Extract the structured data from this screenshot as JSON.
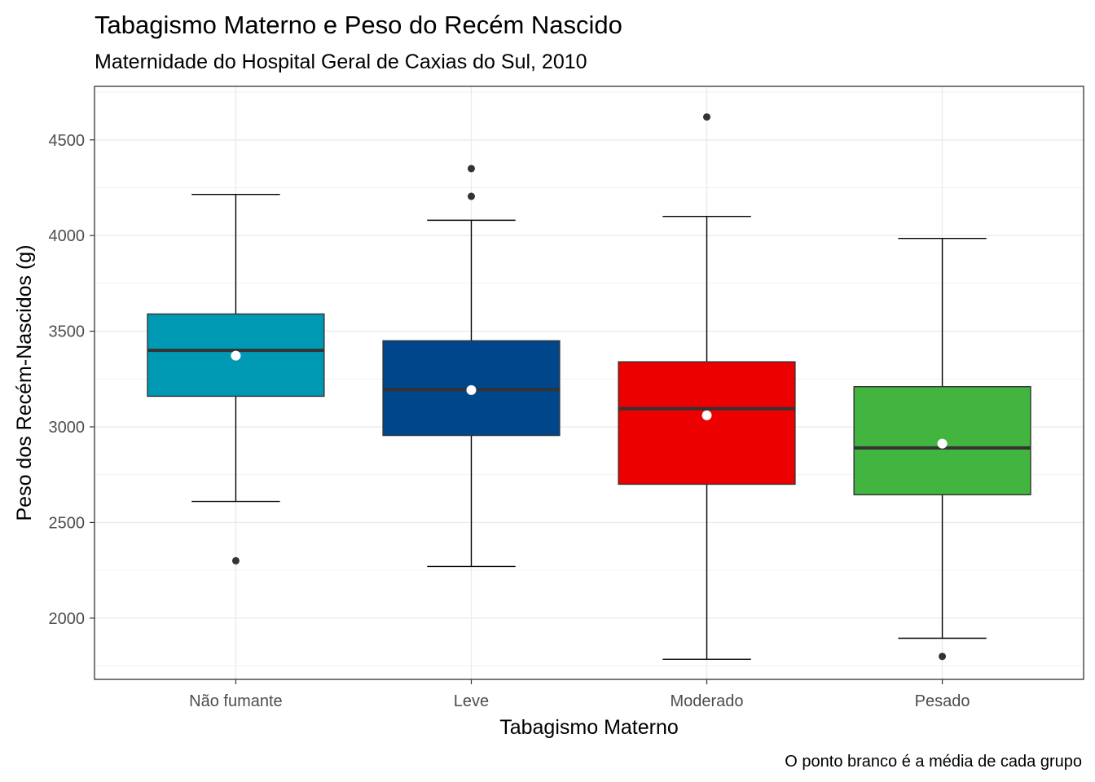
{
  "chart_data": {
    "type": "boxplot",
    "title": "Tabagismo Materno e Peso do Recém Nascido",
    "subtitle": "Maternidade do Hospital Geral de Caxias do Sul, 2010",
    "xlabel": "Tabagismo Materno",
    "ylabel": "Peso dos Recém-Nascidos (g)",
    "caption": "O ponto branco é a média de cada grupo",
    "ylim": [
      1680,
      4780
    ],
    "y_ticks": [
      2000,
      2500,
      3000,
      3500,
      4000,
      4500
    ],
    "y_tick_labels": [
      "2000",
      "2500",
      "3000",
      "3500",
      "4000",
      "4500"
    ],
    "grid": true,
    "categories": [
      "Não fumante",
      "Leve",
      "Moderado",
      "Pesado"
    ],
    "boxes": [
      {
        "category": "Não fumante",
        "fill": "#0099b4",
        "whisker_low": 2610,
        "q1": 3160,
        "median": 3400,
        "q3": 3590,
        "whisker_high": 4215,
        "mean": 3372,
        "outliers": [
          2300
        ]
      },
      {
        "category": "Leve",
        "fill": "#00468b",
        "whisker_low": 2270,
        "q1": 2955,
        "median": 3195,
        "q3": 3450,
        "whisker_high": 4080,
        "mean": 3192,
        "outliers": [
          4205,
          4350
        ]
      },
      {
        "category": "Moderado",
        "fill": "#ed0000",
        "whisker_low": 1785,
        "q1": 2700,
        "median": 3095,
        "q3": 3340,
        "whisker_high": 4100,
        "mean": 3060,
        "outliers": [
          4620
        ]
      },
      {
        "category": "Pesado",
        "fill": "#42b540",
        "whisker_low": 1895,
        "q1": 2645,
        "median": 2890,
        "q3": 3210,
        "whisker_high": 3985,
        "mean": 2912,
        "outliers": [
          1800
        ]
      }
    ]
  }
}
